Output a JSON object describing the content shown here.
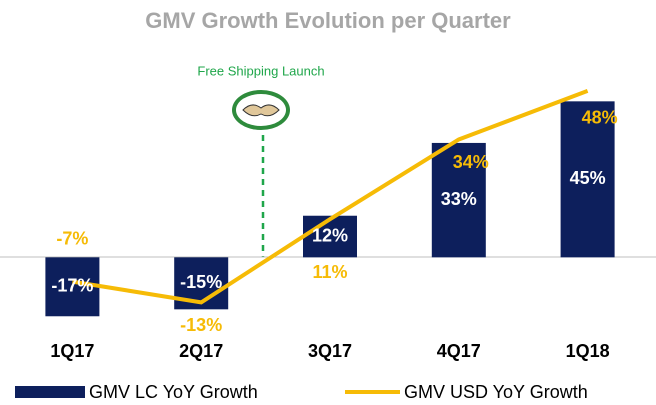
{
  "chart_data": {
    "type": "bar",
    "title": "GMV Growth Evolution per Quarter",
    "annotation": "Free Shipping Launch",
    "categories": [
      "1Q17",
      "2Q17",
      "3Q17",
      "4Q17",
      "1Q18"
    ],
    "ylim": [
      -25,
      50
    ],
    "series": [
      {
        "name": "GMV LC YoY Growth",
        "type": "bar",
        "color": "#0d1f5c",
        "values": [
          -17,
          -15,
          12,
          33,
          45
        ],
        "value_labels": [
          "-17%",
          "-15%",
          "12%",
          "33%",
          "45%"
        ]
      },
      {
        "name": "GMV USD YoY Growth",
        "type": "line",
        "color": "#f6bb06",
        "values": [
          -7,
          -13,
          11,
          34,
          48
        ],
        "value_labels": [
          "-7%",
          "-13%",
          "11%",
          "34%",
          "48%"
        ]
      }
    ]
  }
}
